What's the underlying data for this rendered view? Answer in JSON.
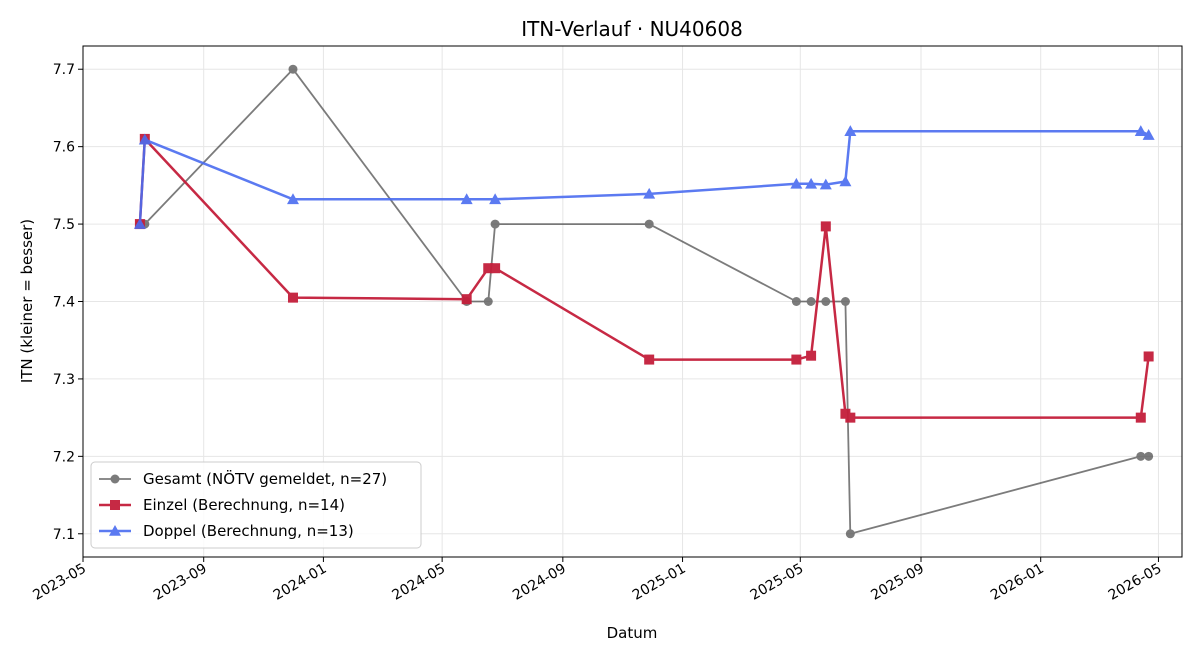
{
  "chart_data": {
    "type": "line",
    "title": "ITN-Verlauf · NU40608",
    "xlabel": "Datum",
    "ylabel": "ITN  (kleiner = besser)",
    "xlim": [
      "2023-05-01",
      "2026-05-25"
    ],
    "ylim": [
      7.07,
      7.73
    ],
    "x_ticks": [
      "2023-05",
      "2023-09",
      "2024-01",
      "2024-05",
      "2024-09",
      "2025-01",
      "2025-05",
      "2025-09",
      "2026-01",
      "2026-05"
    ],
    "y_ticks": [
      7.1,
      7.2,
      7.3,
      7.4,
      7.5,
      7.6,
      7.7
    ],
    "grid": true,
    "legend_position": "lower-left",
    "series": [
      {
        "name": "Gesamt (NÖTV gemeldet, n=27)",
        "color": "#444444",
        "marker": "circle",
        "points": [
          {
            "x": "2023-06-28",
            "y": 7.5
          },
          {
            "x": "2023-07-03",
            "y": 7.5
          },
          {
            "x": "2023-12-01",
            "y": 7.7
          },
          {
            "x": "2024-05-26",
            "y": 7.4
          },
          {
            "x": "2024-06-17",
            "y": 7.4
          },
          {
            "x": "2024-06-24",
            "y": 7.5
          },
          {
            "x": "2024-11-28",
            "y": 7.5
          },
          {
            "x": "2025-04-27",
            "y": 7.4
          },
          {
            "x": "2025-05-12",
            "y": 7.4
          },
          {
            "x": "2025-05-27",
            "y": 7.4
          },
          {
            "x": "2025-06-16",
            "y": 7.4
          },
          {
            "x": "2025-06-21",
            "y": 7.1
          },
          {
            "x": "2026-04-13",
            "y": 7.2
          },
          {
            "x": "2026-04-21",
            "y": 7.2
          }
        ]
      },
      {
        "name": "Einzel (Berechnung, n=14)",
        "color": "#c41e3a",
        "marker": "square",
        "points": [
          {
            "x": "2023-06-28",
            "y": 7.5
          },
          {
            "x": "2023-07-03",
            "y": 7.61
          },
          {
            "x": "2023-12-01",
            "y": 7.405
          },
          {
            "x": "2024-05-26",
            "y": 7.403
          },
          {
            "x": "2024-06-17",
            "y": 7.443
          },
          {
            "x": "2024-06-24",
            "y": 7.443
          },
          {
            "x": "2024-11-28",
            "y": 7.325
          },
          {
            "x": "2025-04-27",
            "y": 7.325
          },
          {
            "x": "2025-05-12",
            "y": 7.33
          },
          {
            "x": "2025-05-27",
            "y": 7.497
          },
          {
            "x": "2025-06-16",
            "y": 7.255
          },
          {
            "x": "2025-06-21",
            "y": 7.25
          },
          {
            "x": "2026-04-13",
            "y": 7.25
          },
          {
            "x": "2026-04-21",
            "y": 7.329
          }
        ]
      },
      {
        "name": "Doppel (Berechnung, n=13)",
        "color": "#4a6cf0",
        "marker": "triangle",
        "points": [
          {
            "x": "2023-06-28",
            "y": 7.5
          },
          {
            "x": "2023-07-03",
            "y": 7.609
          },
          {
            "x": "2023-12-01",
            "y": 7.532
          },
          {
            "x": "2024-05-26",
            "y": 7.532
          },
          {
            "x": "2024-06-24",
            "y": 7.532
          },
          {
            "x": "2024-11-28",
            "y": 7.539
          },
          {
            "x": "2025-04-27",
            "y": 7.552
          },
          {
            "x": "2025-05-12",
            "y": 7.552
          },
          {
            "x": "2025-05-27",
            "y": 7.551
          },
          {
            "x": "2025-06-16",
            "y": 7.555
          },
          {
            "x": "2025-06-21",
            "y": 7.62
          },
          {
            "x": "2026-04-13",
            "y": 7.62
          },
          {
            "x": "2026-04-21",
            "y": 7.615
          }
        ]
      }
    ]
  }
}
